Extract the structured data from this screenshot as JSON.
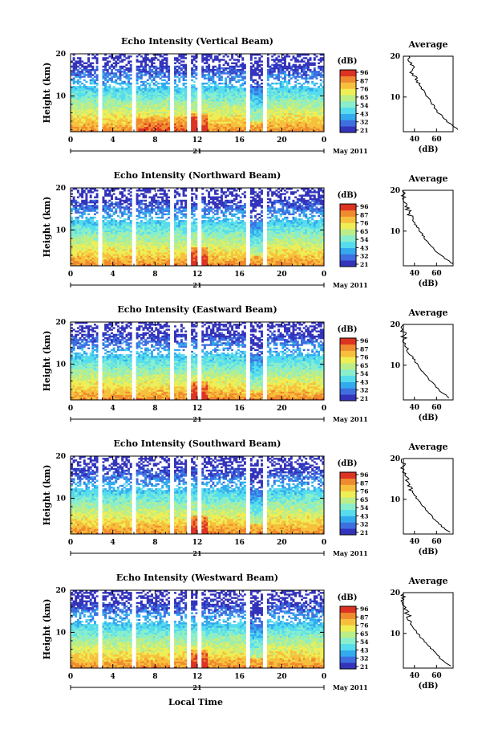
{
  "figure": {
    "date_label": "May 2011",
    "xlabel": "Local Time",
    "x_ticks": [
      "0",
      "4",
      "8",
      "12",
      "16",
      "20",
      "0"
    ],
    "day_label": "21",
    "ylabel": "Height (km)",
    "y_ticks": [
      "10",
      "20"
    ],
    "colorbar_unit": "(dB)",
    "colorbar_ticks": [
      "96",
      "87",
      "76",
      "65",
      "54",
      "43",
      "32",
      "21"
    ],
    "avg_title": "Average",
    "avg_xlabel": "(dB)",
    "avg_y_ticks": [
      "10",
      "20"
    ],
    "colors": {
      "scale": [
        "#3333bb",
        "#3e6fe0",
        "#33aaee",
        "#55ddee",
        "#88eecc",
        "#bbee88",
        "#eeee55",
        "#f7c03c",
        "#f08a2e",
        "#dd3322"
      ]
    }
  },
  "panels": [
    {
      "title": "Echo Intensity (Vertical Beam)",
      "avg_x_ticks": [
        "40",
        "60"
      ]
    },
    {
      "title": "Echo Intensity (Northward Beam)",
      "avg_x_ticks": [
        "40",
        "60"
      ]
    },
    {
      "title": "Echo Intensity (Eastward Beam)",
      "avg_x_ticks": [
        "40",
        "60"
      ]
    },
    {
      "title": "Echo Intensity (Southward Beam)",
      "avg_x_ticks": [
        "40",
        "60"
      ]
    },
    {
      "title": "Echo Intensity (Westward Beam)",
      "avg_x_ticks": [
        "40",
        "60"
      ]
    }
  ],
  "chart_data": {
    "type": "heatmap",
    "x_range_hours": [
      0,
      24
    ],
    "y_range_km": [
      1.5,
      20
    ],
    "z_range_db": [
      21,
      96
    ],
    "data_gaps_hours": [
      [
        2.6,
        3.0
      ],
      [
        5.9,
        6.3
      ],
      [
        9.4,
        9.8
      ],
      [
        11.0,
        11.4
      ],
      [
        12.0,
        12.4
      ],
      [
        16.6,
        17.0
      ],
      [
        18.2,
        18.6
      ]
    ],
    "average_profiles_km_vs_db": [
      {
        "name": "Vertical",
        "points": [
          [
            2,
            80
          ],
          [
            4,
            70
          ],
          [
            6,
            62
          ],
          [
            8,
            57
          ],
          [
            10,
            52
          ],
          [
            12,
            47
          ],
          [
            14,
            42
          ],
          [
            16,
            38
          ],
          [
            18,
            38
          ],
          [
            20,
            35
          ]
        ]
      },
      {
        "name": "Northward",
        "points": [
          [
            2,
            75
          ],
          [
            4,
            64
          ],
          [
            6,
            56
          ],
          [
            8,
            50
          ],
          [
            10,
            45
          ],
          [
            12,
            40
          ],
          [
            14,
            36
          ],
          [
            16,
            33
          ],
          [
            18,
            31
          ],
          [
            20,
            29
          ]
        ]
      },
      {
        "name": "Eastward",
        "points": [
          [
            2,
            72
          ],
          [
            4,
            62
          ],
          [
            6,
            55
          ],
          [
            8,
            49
          ],
          [
            10,
            43
          ],
          [
            12,
            38
          ],
          [
            14,
            34
          ],
          [
            16,
            31
          ],
          [
            18,
            30
          ],
          [
            20,
            30
          ]
        ]
      },
      {
        "name": "Southward",
        "points": [
          [
            2,
            72
          ],
          [
            4,
            62
          ],
          [
            6,
            55
          ],
          [
            8,
            49
          ],
          [
            10,
            43
          ],
          [
            12,
            38
          ],
          [
            14,
            34
          ],
          [
            16,
            31
          ],
          [
            18,
            30
          ],
          [
            20,
            29
          ]
        ]
      },
      {
        "name": "Westward",
        "points": [
          [
            2,
            73
          ],
          [
            4,
            63
          ],
          [
            6,
            56
          ],
          [
            8,
            49
          ],
          [
            10,
            43
          ],
          [
            12,
            38
          ],
          [
            14,
            35
          ],
          [
            16,
            32
          ],
          [
            18,
            30
          ],
          [
            20,
            30
          ]
        ]
      }
    ],
    "avg_x_range_db": [
      30,
      75
    ]
  }
}
